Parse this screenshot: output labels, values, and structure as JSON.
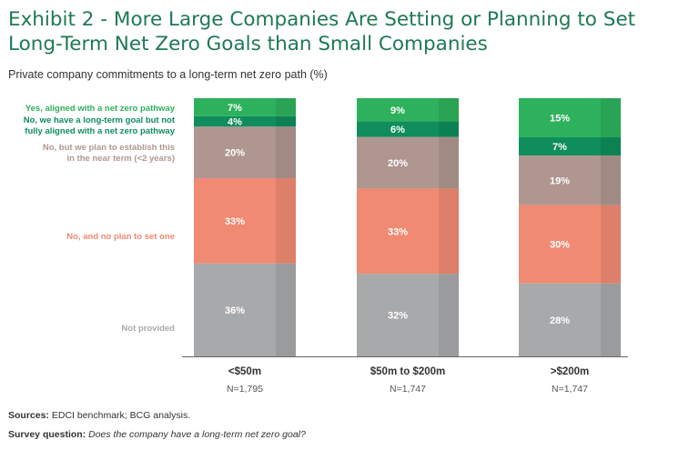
{
  "title": "Exhibit 2 - More Large Companies Are Setting or Planning to Set Long-Term Net Zero Goals than Small Companies",
  "subtitle": "Private company commitments to a long-term net zero path (%)",
  "colors": {
    "title": "#1e7a52",
    "aligned": "#2eb15c",
    "not_aligned": "#0f8d5c",
    "plan": "#b09690",
    "no_plan": "#f08a72",
    "not_provided": "#a8a9ab"
  },
  "chart_data": {
    "type": "bar",
    "stacked": true,
    "normalized_to": 100,
    "categories": [
      "<$50m",
      "$50m to $200m",
      ">$200m"
    ],
    "sample_sizes": [
      "N=1,795",
      "N=1,747",
      "N=1,747"
    ],
    "series": [
      {
        "name": "Not provided",
        "values": [
          36,
          32,
          28
        ],
        "labels": [
          "36%",
          "32%",
          "28%"
        ]
      },
      {
        "name": "No, and no plan to set one",
        "values": [
          33,
          33,
          30
        ],
        "labels": [
          "33%",
          "33%",
          "30%"
        ]
      },
      {
        "name": "No, but we plan to establish this in the near term (<2 years)",
        "values": [
          20,
          20,
          19
        ],
        "labels": [
          "20%",
          "20%",
          "19%"
        ]
      },
      {
        "name": "No, we have a long-term goal but not fully aligned with a net zero pathway",
        "values": [
          4,
          6,
          7
        ],
        "labels": [
          "4%",
          "6%",
          "7%"
        ]
      },
      {
        "name": "Yes, aligned with a net zero pathway",
        "values": [
          7,
          9,
          15
        ],
        "labels": [
          "7%",
          "9%",
          "15%"
        ]
      }
    ],
    "legend_position": "left",
    "grid": false
  },
  "footer": {
    "sources_label": "Sources:",
    "sources_text": "EDCI benchmark; BCG analysis.",
    "question_label": "Survey question:",
    "question_text": "Does the company have a long-term net zero goal?"
  }
}
